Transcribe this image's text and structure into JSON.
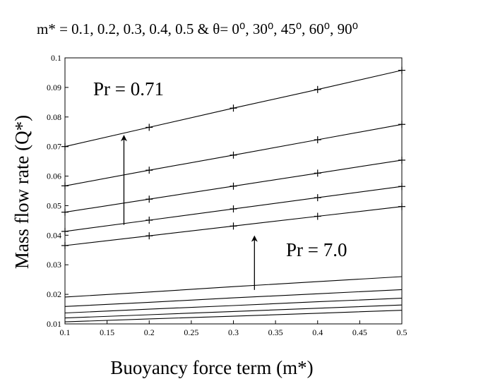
{
  "chart_data": {
    "type": "line",
    "title": "m* = 0.1, 0.2, 0.3, 0.4, 0.5 & θ= 0⁰, 30⁰, 45⁰, 60⁰, 90⁰",
    "xlabel": "Buoyancy force term (m*)",
    "ylabel": "Mass flow rate (Q*)",
    "xlim": [
      0.1,
      0.5
    ],
    "ylim": [
      0.01,
      0.1
    ],
    "xticks": [
      "0.1",
      "0.15",
      "0.2",
      "0.25",
      "0.3",
      "0.35",
      "0.4",
      "0.45",
      "0.5"
    ],
    "yticks": [
      "0.01",
      "0.02",
      "0.03",
      "0.04",
      "0.05",
      "0.06",
      "0.07",
      "0.08",
      "0.09",
      "0.1"
    ],
    "grid": false,
    "x": [
      0.1,
      0.2,
      0.3,
      0.4,
      0.5
    ],
    "series": [
      {
        "group": "Pr = 0.71",
        "markers": true,
        "values": [
          0.07,
          0.0765,
          0.083,
          0.0893,
          0.0958
        ]
      },
      {
        "group": "Pr = 0.71",
        "markers": true,
        "values": [
          0.0567,
          0.062,
          0.0671,
          0.0723,
          0.0775
        ]
      },
      {
        "group": "Pr = 0.71",
        "markers": true,
        "values": [
          0.0478,
          0.0522,
          0.0566,
          0.061,
          0.0654
        ]
      },
      {
        "group": "Pr = 0.71",
        "markers": true,
        "values": [
          0.0413,
          0.0451,
          0.0489,
          0.0527,
          0.0565
        ]
      },
      {
        "group": "Pr = 0.71",
        "markers": true,
        "values": [
          0.0365,
          0.0398,
          0.0431,
          0.0464,
          0.0497
        ]
      },
      {
        "group": "Pr = 7.0",
        "markers": false,
        "values": [
          0.0191,
          0.0208,
          0.0226,
          0.0243,
          0.026
        ]
      },
      {
        "group": "Pr = 7.0",
        "markers": false,
        "values": [
          0.0159,
          0.0173,
          0.0188,
          0.0202,
          0.0216
        ]
      },
      {
        "group": "Pr = 7.0",
        "markers": false,
        "values": [
          0.0137,
          0.015,
          0.0162,
          0.0175,
          0.0187
        ]
      },
      {
        "group": "Pr = 7.0",
        "markers": false,
        "values": [
          0.012,
          0.0131,
          0.0142,
          0.0153,
          0.0164
        ]
      },
      {
        "group": "Pr = 7.0",
        "markers": false,
        "values": [
          0.0107,
          0.0117,
          0.0126,
          0.0136,
          0.0146
        ]
      }
    ],
    "annotations": [
      {
        "text": "Pr = 0.71",
        "arrow": {
          "from": [
            0.17,
            0.0435
          ],
          "to": [
            0.17,
            0.0735
          ]
        }
      },
      {
        "text": "Pr = 7.0",
        "arrow": {
          "from": [
            0.325,
            0.0215
          ],
          "to": [
            0.325,
            0.0395
          ]
        }
      }
    ]
  }
}
